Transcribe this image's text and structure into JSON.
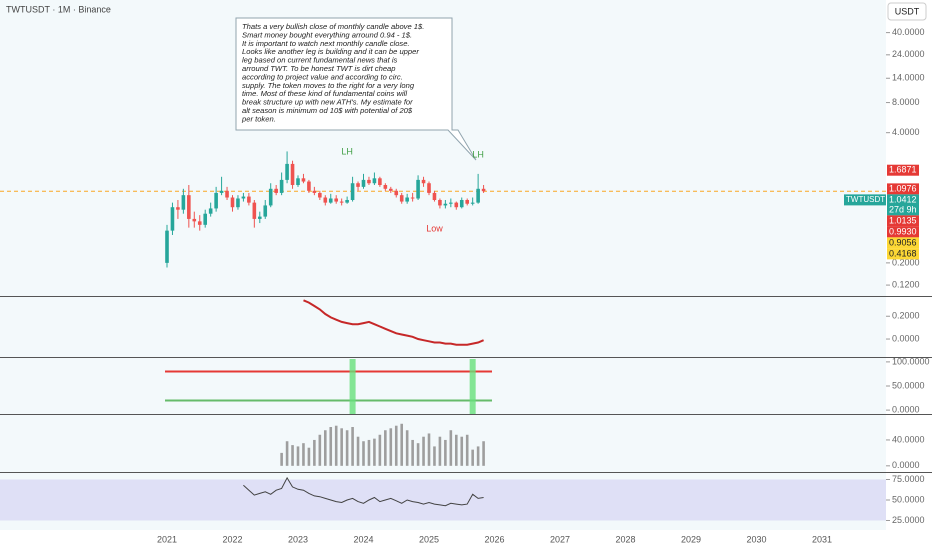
{
  "chart_data": [
    {
      "type": "candlestick",
      "title": "TWTUSDT · 1M · Binance",
      "currency": "USDT",
      "log_scale": true,
      "open": [
        0.2,
        0.42,
        0.72,
        0.68,
        0.95,
        0.55,
        0.52,
        0.48,
        0.62,
        0.7,
        1.0,
        1.05,
        0.9,
        0.72,
        0.88,
        0.92,
        0.8,
        0.55,
        0.58,
        0.75,
        1.1,
        1.0,
        1.35,
        1.95,
        1.2,
        1.4,
        1.3,
        1.05,
        1.0,
        0.9,
        0.8,
        0.88,
        0.82,
        0.8,
        0.85,
        1.25,
        1.15,
        1.35,
        1.25,
        1.4,
        1.2,
        1.1,
        1.05,
        0.95,
        0.82,
        0.9,
        0.88,
        1.35,
        1.25,
        1.0,
        0.85,
        0.75,
        0.78,
        0.8,
        0.72,
        0.85,
        0.78,
        0.8,
        1.1
      ],
      "high": [
        0.48,
        0.8,
        0.85,
        1.1,
        1.2,
        0.65,
        0.6,
        0.68,
        0.8,
        1.15,
        1.45,
        1.15,
        0.95,
        0.95,
        1.0,
        1.0,
        0.85,
        0.65,
        0.85,
        1.25,
        1.2,
        1.6,
        2.6,
        2.1,
        1.5,
        1.55,
        1.35,
        1.15,
        1.05,
        0.95,
        0.98,
        0.95,
        0.88,
        0.92,
        1.45,
        1.3,
        1.55,
        1.45,
        1.6,
        1.45,
        1.25,
        1.15,
        1.1,
        1.0,
        0.98,
        1.0,
        1.5,
        1.45,
        1.3,
        1.05,
        0.88,
        0.85,
        0.88,
        0.82,
        0.9,
        0.88,
        0.9,
        1.55,
        1.2
      ],
      "low": [
        0.18,
        0.38,
        0.55,
        0.62,
        0.45,
        0.45,
        0.42,
        0.45,
        0.58,
        0.65,
        0.95,
        0.85,
        0.65,
        0.68,
        0.82,
        0.75,
        0.45,
        0.5,
        0.55,
        0.72,
        0.95,
        0.95,
        1.25,
        1.1,
        1.15,
        1.25,
        1.0,
        0.95,
        0.85,
        0.75,
        0.78,
        0.78,
        0.75,
        0.78,
        0.82,
        1.05,
        1.1,
        1.2,
        1.2,
        1.15,
        1.05,
        1.0,
        0.9,
        0.78,
        0.78,
        0.82,
        0.85,
        1.15,
        0.95,
        0.82,
        0.7,
        0.7,
        0.72,
        0.68,
        0.7,
        0.75,
        0.75,
        0.78,
        1.0
      ],
      "close": [
        0.42,
        0.72,
        0.68,
        0.95,
        0.55,
        0.52,
        0.48,
        0.62,
        0.7,
        1.0,
        1.05,
        0.9,
        0.72,
        0.88,
        0.92,
        0.8,
        0.55,
        0.58,
        0.75,
        1.1,
        1.0,
        1.35,
        1.95,
        1.2,
        1.4,
        1.3,
        1.05,
        1.0,
        0.9,
        0.8,
        0.88,
        0.82,
        0.8,
        0.85,
        1.25,
        1.15,
        1.35,
        1.25,
        1.4,
        1.2,
        1.1,
        1.05,
        0.95,
        0.82,
        0.9,
        0.88,
        1.35,
        1.25,
        1.0,
        0.85,
        0.75,
        0.78,
        0.8,
        0.72,
        0.85,
        0.78,
        0.8,
        1.1,
        1.04
      ],
      "up_color": "#26a69a",
      "down_color": "#ef5350",
      "ylim": [
        0.1,
        60
      ],
      "yticks": [
        {
          "value": 40,
          "label": "40.0000"
        },
        {
          "value": 24,
          "label": "24.0000"
        },
        {
          "value": 14,
          "label": "14.0000"
        },
        {
          "value": 8,
          "label": "8.0000"
        },
        {
          "value": 4,
          "label": "4.0000"
        },
        {
          "value": 0.2,
          "label": "0.2000"
        },
        {
          "value": 0.12,
          "label": "0.1200"
        }
      ],
      "xticks": [
        2021,
        2022,
        2023,
        2024,
        2025,
        2026,
        2027,
        2028,
        2029,
        2030,
        2031
      ],
      "price_labels": [
        {
          "value": 1.6871,
          "label": "1.6871",
          "color": "#e53935"
        },
        {
          "value": 1.0976,
          "label": "1.0976",
          "color": "#e53935"
        },
        {
          "value": 1.0412,
          "label": "1.0412",
          "color": "#26a69a",
          "name": "TWTUSDT",
          "countdown": "27d 9h"
        },
        {
          "value": 1.0135,
          "label": "1.0135",
          "color": "#e53935"
        },
        {
          "value": 0.993,
          "label": "0.9930",
          "color": "#e53935"
        },
        {
          "value": 0.9056,
          "label": "0.9056",
          "color": "#fdd835"
        },
        {
          "value": 0.4168,
          "label": "0.4168",
          "color": "#fdd835"
        }
      ],
      "annotations": [
        "LH",
        "LH",
        "Low"
      ],
      "note": [
        "Thats a very bullish close of monthly candle above 1$.",
        "Smart money bought everything arround 0.94 - 1$.",
        "It is important to watch next monthly candle close.",
        "Looks like another leg is building and it can be upper",
        "leg based on current fundamental news that is",
        "arround TWT. To be honest TWT is dirt cheap",
        "according to project value and according to circ.",
        "supply. The token moves to the right for a very long",
        "time. Most of these kind of fundamental coins will",
        "break structure up with new ATH's. My estimate for",
        "alt season is minimum od 10$ with potential of 20$",
        "per token."
      ]
    },
    {
      "type": "line",
      "color": "#c62828",
      "values": [
        0.34,
        0.32,
        0.29,
        0.26,
        0.22,
        0.19,
        0.17,
        0.15,
        0.14,
        0.13,
        0.13,
        0.14,
        0.15,
        0.13,
        0.11,
        0.09,
        0.07,
        0.05,
        0.04,
        0.03,
        0.02,
        0.0,
        -0.01,
        -0.02,
        -0.03,
        -0.03,
        -0.04,
        -0.04,
        -0.05,
        -0.05,
        -0.05,
        -0.04,
        -0.03,
        -0.01
      ],
      "ylim": [
        -0.14,
        0.36
      ],
      "yticks": [
        {
          "value": 0.2,
          "label": "0.2000"
        },
        {
          "value": 0,
          "label": "0.0000"
        }
      ]
    },
    {
      "type": "levels",
      "levels": [
        80,
        20
      ],
      "level_colors": [
        "#e53935",
        "#66bb6a"
      ],
      "ylim": [
        -6,
        106
      ],
      "yticks": [
        {
          "value": 100,
          "label": "100.0000"
        },
        {
          "value": 50,
          "label": "50.0000"
        },
        {
          "value": 0,
          "label": "0.0000"
        }
      ]
    },
    {
      "type": "bar",
      "color": "#9e9e9e",
      "values": [
        20,
        38,
        32,
        30,
        35,
        28,
        40,
        48,
        55,
        60,
        62,
        58,
        55,
        60,
        45,
        38,
        40,
        42,
        48,
        55,
        58,
        62,
        65,
        55,
        40,
        35,
        45,
        50,
        30,
        45,
        40,
        55,
        48,
        45,
        48,
        25,
        30,
        38
      ],
      "ylim": [
        -8,
        77
      ],
      "yticks": [
        {
          "value": 40,
          "label": "40.0000"
        },
        {
          "value": 0,
          "label": "0.0000"
        }
      ]
    },
    {
      "type": "line",
      "color": "#424242",
      "values": [
        68,
        62,
        56,
        58,
        60,
        57,
        62,
        64,
        77,
        66,
        63,
        62,
        58,
        55,
        54,
        52,
        50,
        48,
        47,
        50,
        52,
        48,
        46,
        50,
        53,
        48,
        50,
        52,
        49,
        46,
        50,
        48,
        47,
        45,
        47,
        45,
        44,
        43,
        46,
        45,
        44,
        45,
        57,
        52,
        53
      ],
      "ylim": [
        14.6,
        80.5
      ],
      "yticks": [
        {
          "value": 75,
          "label": "75.0000"
        },
        {
          "value": 50,
          "label": "50.0000"
        },
        {
          "value": 25,
          "label": "25.0000"
        }
      ]
    }
  ]
}
